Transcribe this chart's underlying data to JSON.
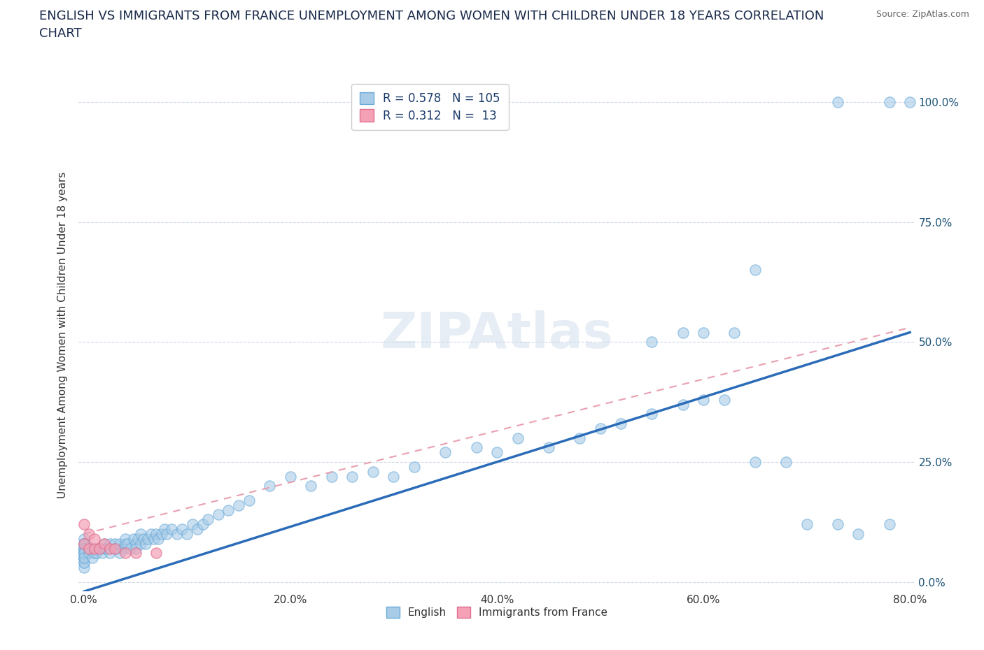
{
  "title": "ENGLISH VS IMMIGRANTS FROM FRANCE UNEMPLOYMENT AMONG WOMEN WITH CHILDREN UNDER 18 YEARS CORRELATION\nCHART",
  "source": "Source: ZipAtlas.com",
  "watermark": "ZIPAtlas",
  "ylabel": "Unemployment Among Women with Children Under 18 years",
  "xlim": [
    -0.005,
    0.805
  ],
  "ylim": [
    -0.02,
    1.05
  ],
  "xticks": [
    0.0,
    0.2,
    0.4,
    0.6,
    0.8
  ],
  "xticklabels": [
    "0.0%",
    "20.0%",
    "40.0%",
    "60.0%",
    "80.0%"
  ],
  "yticks": [
    0.0,
    0.25,
    0.5,
    0.75,
    1.0
  ],
  "right_yticklabels": [
    "0.0%",
    "25.0%",
    "50.0%",
    "75.0%",
    "100.0%"
  ],
  "english_R": 0.578,
  "english_N": 105,
  "france_R": 0.312,
  "france_N": 13,
  "english_color": "#a8cce8",
  "france_color": "#f4a0b5",
  "trendline_english_color": "#2b6cb8",
  "trendline_france_color": "#e8a0b0",
  "background_color": "#ffffff",
  "grid_color": "#d0d8e8",
  "title_color": "#1a2a4a",
  "source_color": "#666666",
  "legend_text_color": "#1a3a6a",
  "axis_text_color": "#333333",
  "right_axis_color": "#1a5276",
  "english_x": [
    0.0,
    0.0,
    0.0,
    0.0,
    0.0,
    0.0,
    0.0,
    0.0,
    0.0,
    0.0,
    0.0,
    0.0,
    0.0,
    0.0,
    0.0,
    0.0,
    0.0,
    0.0,
    0.0,
    0.0,
    0.005,
    0.005,
    0.008,
    0.01,
    0.01,
    0.012,
    0.015,
    0.018,
    0.02,
    0.02,
    0.022,
    0.025,
    0.025,
    0.03,
    0.03,
    0.032,
    0.035,
    0.035,
    0.038,
    0.04,
    0.04,
    0.042,
    0.045,
    0.048,
    0.05,
    0.05,
    0.052,
    0.055,
    0.055,
    0.058,
    0.06,
    0.062,
    0.065,
    0.068,
    0.07,
    0.072,
    0.075,
    0.078,
    0.08,
    0.085,
    0.09,
    0.095,
    0.1,
    0.105,
    0.11,
    0.115,
    0.12,
    0.13,
    0.14,
    0.15,
    0.16,
    0.18,
    0.2,
    0.22,
    0.24,
    0.26,
    0.28,
    0.3,
    0.32,
    0.35,
    0.38,
    0.4,
    0.42,
    0.45,
    0.48,
    0.5,
    0.52,
    0.55,
    0.58,
    0.6,
    0.62,
    0.65,
    0.68,
    0.7,
    0.73,
    0.75,
    0.78,
    0.55,
    0.58,
    0.6,
    0.63,
    0.73,
    0.78,
    0.8,
    0.65
  ],
  "english_y": [
    0.05,
    0.06,
    0.07,
    0.08,
    0.04,
    0.03,
    0.07,
    0.06,
    0.09,
    0.08,
    0.05,
    0.06,
    0.07,
    0.08,
    0.05,
    0.06,
    0.07,
    0.04,
    0.06,
    0.05,
    0.06,
    0.07,
    0.05,
    0.06,
    0.07,
    0.06,
    0.07,
    0.06,
    0.07,
    0.08,
    0.07,
    0.06,
    0.08,
    0.07,
    0.08,
    0.07,
    0.08,
    0.06,
    0.07,
    0.08,
    0.09,
    0.08,
    0.07,
    0.09,
    0.08,
    0.07,
    0.09,
    0.08,
    0.1,
    0.09,
    0.08,
    0.09,
    0.1,
    0.09,
    0.1,
    0.09,
    0.1,
    0.11,
    0.1,
    0.11,
    0.1,
    0.11,
    0.1,
    0.12,
    0.11,
    0.12,
    0.13,
    0.14,
    0.15,
    0.16,
    0.17,
    0.2,
    0.22,
    0.2,
    0.22,
    0.22,
    0.23,
    0.22,
    0.24,
    0.27,
    0.28,
    0.27,
    0.3,
    0.28,
    0.3,
    0.32,
    0.33,
    0.35,
    0.37,
    0.38,
    0.38,
    0.25,
    0.25,
    0.12,
    0.12,
    0.1,
    0.12,
    0.5,
    0.52,
    0.52,
    0.52,
    1.0,
    1.0,
    1.0,
    0.65
  ],
  "france_x": [
    0.0,
    0.0,
    0.005,
    0.005,
    0.01,
    0.01,
    0.015,
    0.02,
    0.025,
    0.03,
    0.04,
    0.05,
    0.07
  ],
  "france_y": [
    0.08,
    0.12,
    0.07,
    0.1,
    0.07,
    0.09,
    0.07,
    0.08,
    0.07,
    0.07,
    0.06,
    0.06,
    0.06
  ],
  "trend_eng_x0": 0.0,
  "trend_eng_x1": 0.8,
  "trend_eng_y0": -0.02,
  "trend_eng_y1": 0.52,
  "trend_fra_x0": 0.0,
  "trend_fra_x1": 0.8,
  "trend_fra_y0": 0.1,
  "trend_fra_y1": 0.53
}
